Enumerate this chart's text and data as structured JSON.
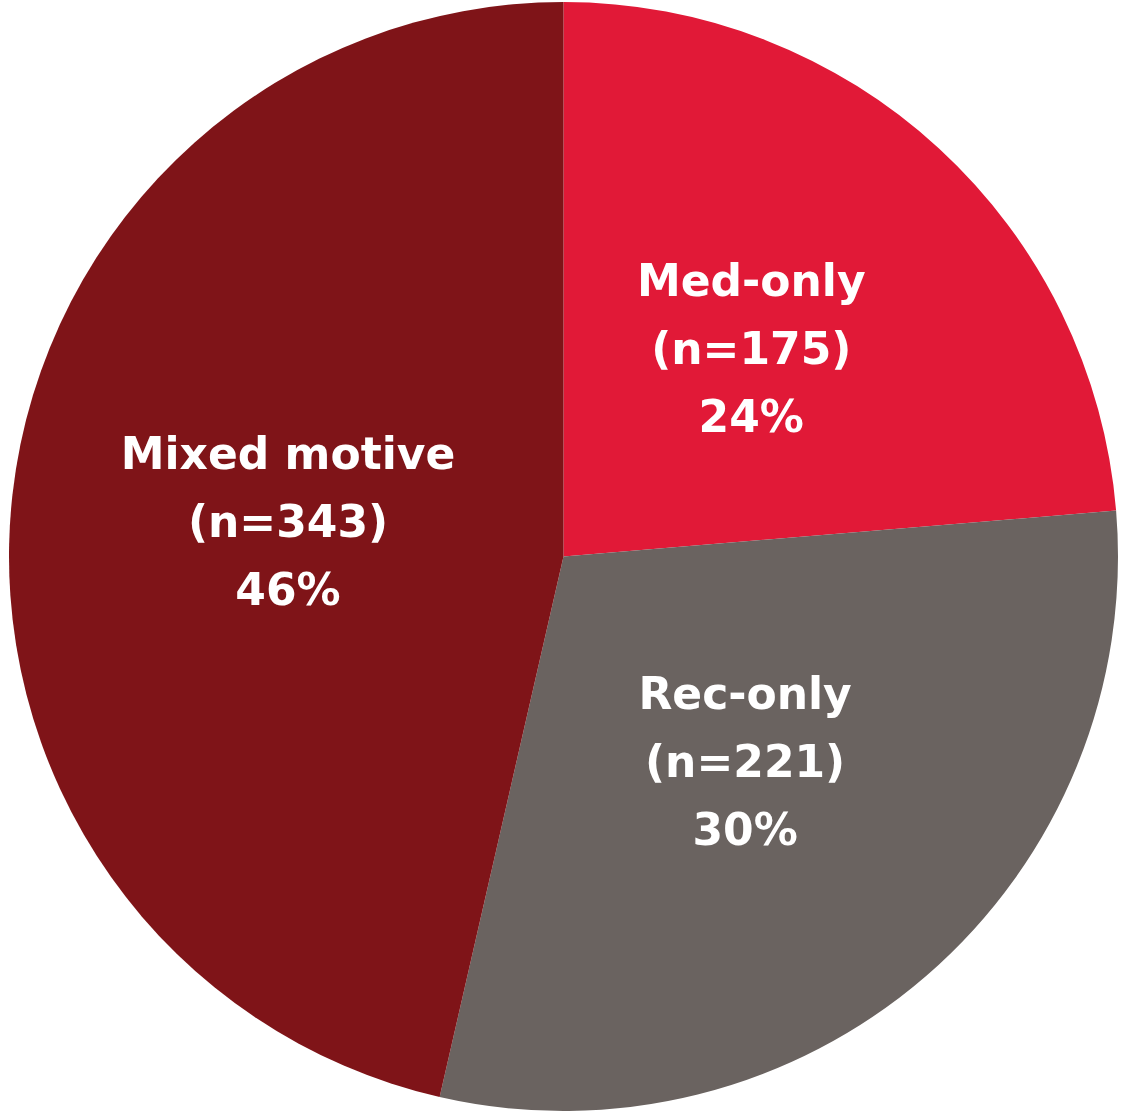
{
  "chart_data": {
    "type": "pie",
    "categories": [
      "Med-only",
      "Rec-only",
      "Mixed motive"
    ],
    "values": [
      175,
      221,
      343
    ],
    "colors": [
      "#e11937",
      "#6a6360",
      "#7f1418"
    ],
    "value_labels": [
      "(n=175)\n24%",
      "(n=221)\n30%",
      "(n=343)\n46%"
    ],
    "legend": false
  }
}
